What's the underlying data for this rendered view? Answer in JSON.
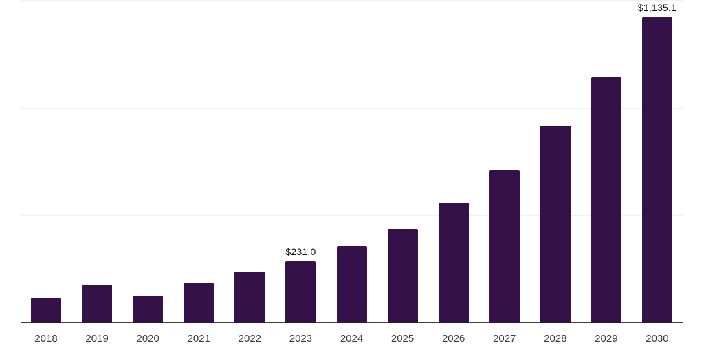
{
  "chart_data": {
    "type": "bar",
    "title": "",
    "categories": [
      "2018",
      "2019",
      "2020",
      "2021",
      "2022",
      "2023",
      "2024",
      "2025",
      "2026",
      "2027",
      "2028",
      "2029",
      "2030"
    ],
    "values": [
      94,
      142,
      101,
      151,
      192,
      231.0,
      286,
      350,
      448,
      568,
      732,
      915,
      1135.1
    ],
    "data_labels": {
      "2023": "$231.0",
      "2030": "$1,135.1"
    },
    "ylim": [
      0,
      1200
    ],
    "grid_step": 200,
    "grid": "horizontal-only",
    "legend": "none",
    "xlabel": "",
    "ylabel": "",
    "y_tick_labels_visible": false,
    "colors": {
      "bar": "#341148",
      "gridline": "#f0f0f0",
      "axis": "#404040",
      "tick_label": "#3d3d3d",
      "data_label": "#111111",
      "background": "#ffffff"
    }
  }
}
